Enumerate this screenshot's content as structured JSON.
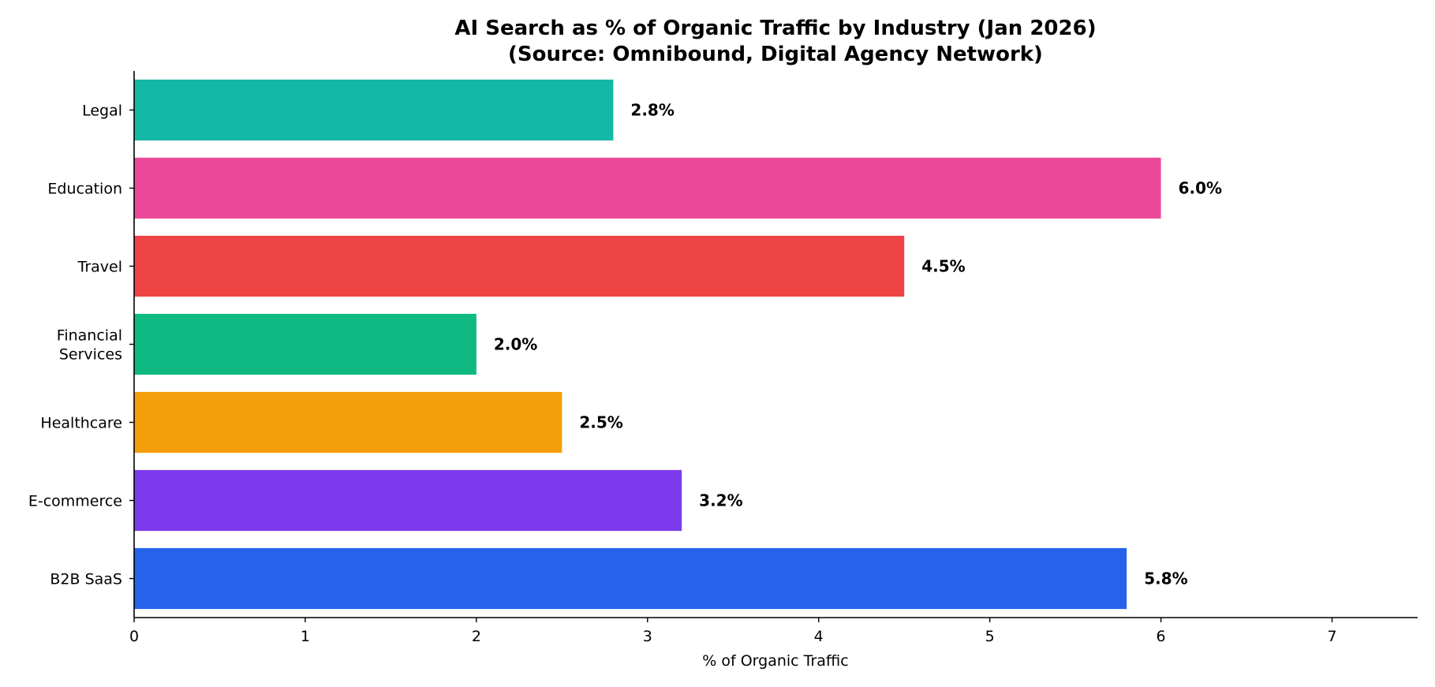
{
  "chart_data": {
    "type": "bar",
    "orientation": "horizontal",
    "title": "AI Search as % of Organic Traffic by Industry (Jan 2026)",
    "subtitle": "(Source: Omnibound, Digital Agency Network)",
    "xlabel": "% of Organic Traffic",
    "ylabel": "",
    "xlim": [
      0,
      7.5
    ],
    "xticks": [
      0,
      1,
      2,
      3,
      4,
      5,
      6,
      7
    ],
    "grid": false,
    "categories": [
      [
        "B2B SaaS"
      ],
      [
        "E-commerce"
      ],
      [
        "Healthcare"
      ],
      [
        "Financial",
        "Services"
      ],
      [
        "Travel"
      ],
      [
        "Education"
      ],
      [
        "Legal"
      ]
    ],
    "values": [
      5.8,
      3.2,
      2.5,
      2.0,
      4.5,
      6.0,
      2.8
    ],
    "data_labels": [
      "5.8%",
      "3.2%",
      "2.5%",
      "2.0%",
      "4.5%",
      "6.0%",
      "2.8%"
    ],
    "colors": [
      "#2563eb",
      "#7c3aed",
      "#f59e0b",
      "#10b981",
      "#ef4444",
      "#ec4899",
      "#14b8a6"
    ]
  }
}
